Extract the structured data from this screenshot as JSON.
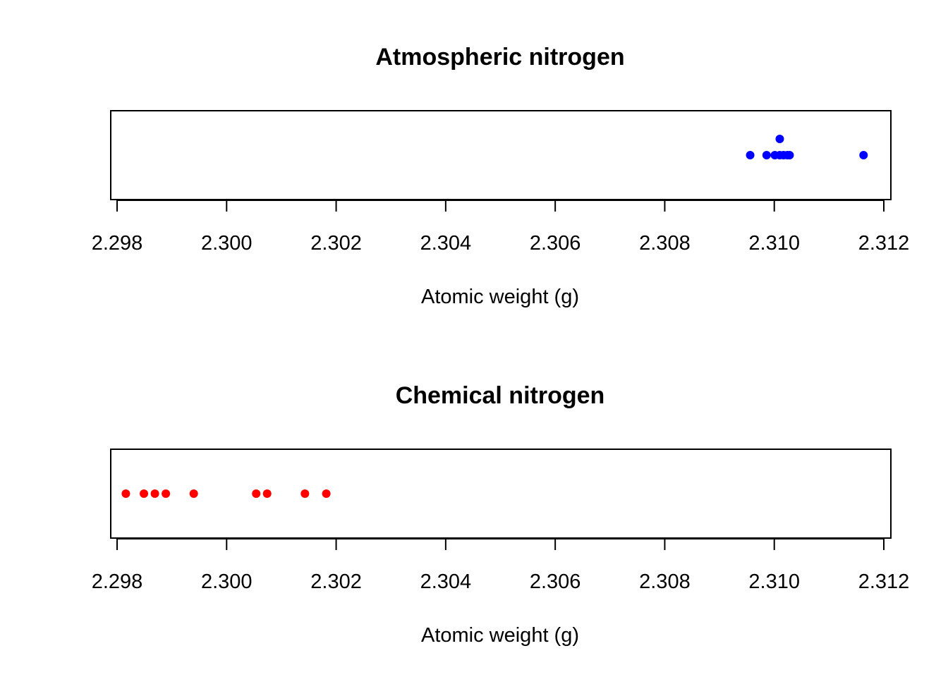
{
  "chart_data": [
    {
      "type": "scatter",
      "title": "Atmospheric nitrogen",
      "xlabel": "Atomic weight (g)",
      "ylabel": "",
      "xlim": [
        2.298,
        2.312
      ],
      "xticks": [
        "2.298",
        "2.300",
        "2.302",
        "2.304",
        "2.306",
        "2.308",
        "2.310",
        "2.312"
      ],
      "tick_values": [
        2.298,
        2.3,
        2.302,
        2.304,
        2.306,
        2.308,
        2.31,
        2.312
      ],
      "grid": false,
      "color": "#0000ff",
      "series": [
        {
          "values": [
            2.30956,
            2.30986,
            2.31001,
            2.3101,
            2.3101,
            2.31017,
            2.31024,
            2.31028,
            2.31163
          ],
          "stack_level": [
            0,
            0,
            0,
            0,
            1,
            0,
            0,
            0,
            0
          ]
        }
      ]
    },
    {
      "type": "scatter",
      "title": "Chemical nitrogen",
      "xlabel": "Atomic weight (g)",
      "ylabel": "",
      "xlim": [
        2.298,
        2.312
      ],
      "xticks": [
        "2.298",
        "2.300",
        "2.302",
        "2.304",
        "2.306",
        "2.308",
        "2.310",
        "2.312"
      ],
      "tick_values": [
        2.298,
        2.3,
        2.302,
        2.304,
        2.306,
        2.308,
        2.31,
        2.312
      ],
      "grid": false,
      "color": "#ff0000",
      "series": [
        {
          "values": [
            2.29816,
            2.29849,
            2.29869,
            2.29889,
            2.2994,
            2.30054,
            2.30074,
            2.30143,
            2.30182
          ],
          "stack_level": [
            0,
            0,
            0,
            0,
            0,
            0,
            0,
            0,
            0
          ]
        }
      ]
    }
  ]
}
